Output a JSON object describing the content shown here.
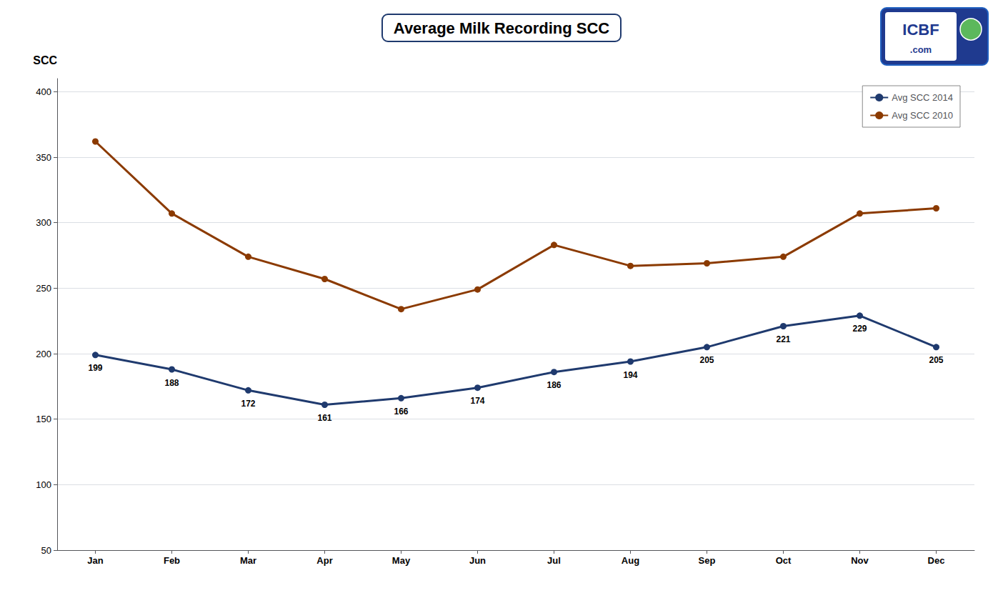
{
  "chart_data": {
    "type": "line",
    "title": "Average Milk Recording SCC",
    "ylabel": "SCC",
    "categories": [
      "Jan",
      "Feb",
      "Mar",
      "Apr",
      "May",
      "Jun",
      "Jul",
      "Aug",
      "Sep",
      "Oct",
      "Nov",
      "Dec"
    ],
    "series": [
      {
        "name": "Avg SCC 2014",
        "color": "#1F3A6E",
        "marker": "circle",
        "data_labels": true,
        "values": [
          199,
          188,
          172,
          161,
          166,
          174,
          186,
          194,
          205,
          221,
          229,
          205
        ]
      },
      {
        "name": "Avg SCC 2010",
        "color": "#8B3A00",
        "marker": "circle",
        "data_labels": false,
        "values": [
          362,
          307,
          274,
          257,
          234,
          249,
          283,
          267,
          269,
          274,
          307,
          311
        ]
      }
    ],
    "ylim": [
      50,
      410
    ],
    "yticks": [
      50,
      100,
      150,
      200,
      250,
      300,
      350,
      400
    ],
    "grid": true,
    "legend": "upper right",
    "annotations": [
      "ICBF",
      ".com"
    ]
  }
}
